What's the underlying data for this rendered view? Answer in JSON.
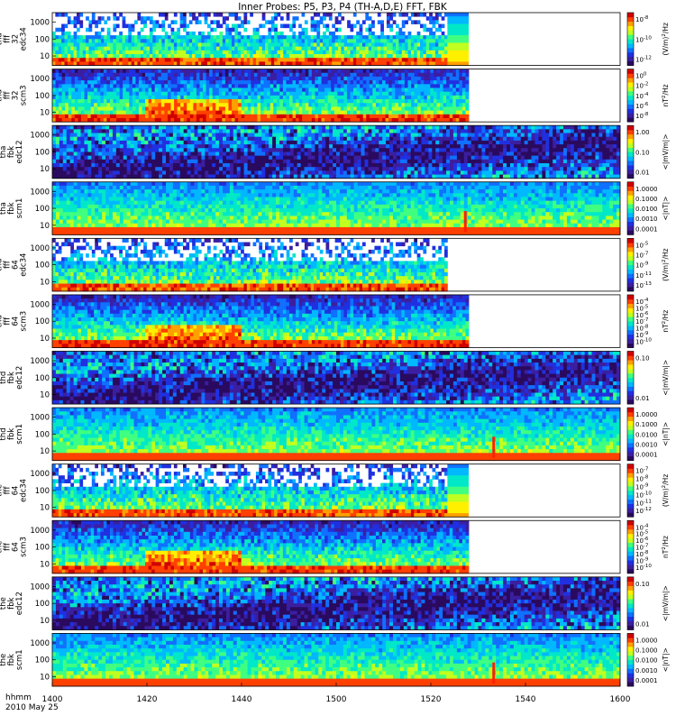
{
  "chart_data": {
    "type": "heatmap",
    "title": "Inner Probes: P5, P3, P4 (TH-A,D,E) FFT, FBK",
    "x_axis": {
      "label_line1": "hhmm",
      "label_line2": "2010 May 25",
      "ticks": [
        "1400",
        "1420",
        "1440",
        "1500",
        "1520",
        "1540",
        "1600"
      ],
      "range_minutes": [
        0,
        120
      ]
    },
    "panels": [
      {
        "ylabel": [
          "tha",
          "fff",
          "32",
          "edc34"
        ],
        "yticks": [
          "1000",
          "100",
          "10"
        ],
        "cbar_ticks": [
          "10^-8",
          "10^-10",
          "10^-12"
        ],
        "cbar_label": "(V/m)^2/Hz",
        "kind": "fff-e",
        "data_end_minutes": 83.5,
        "tail_end_minutes": 88
      },
      {
        "ylabel": [
          "tha",
          "fff",
          "32",
          "scm3"
        ],
        "yticks": [
          "1000",
          "100",
          "10"
        ],
        "cbar_ticks": [
          "10^0",
          "10^-2",
          "10^-4",
          "10^-6",
          "10^-8"
        ],
        "cbar_label": "nT^2/Hz",
        "kind": "fff-b",
        "data_end_minutes": 88
      },
      {
        "ylabel": [
          "tha",
          "fbk",
          "edc12"
        ],
        "yticks": [
          "1000",
          "100",
          "10"
        ],
        "cbar_ticks": [
          "1.00",
          "0.10",
          "0.01"
        ],
        "cbar_label": "<|mV/m|>",
        "kind": "fbk-e",
        "data_end_minutes": 120
      },
      {
        "ylabel": [
          "tha",
          "fbk",
          "scm1"
        ],
        "yticks": [
          "1000",
          "100",
          "10"
        ],
        "cbar_ticks": [
          "1.0000",
          "0.1000",
          "0.0100",
          "0.0010",
          "0.0001"
        ],
        "cbar_label": "<|nT|>",
        "kind": "fbk-b",
        "data_end_minutes": 120,
        "spike_minutes": 87
      },
      {
        "ylabel": [
          "thd",
          "fff",
          "64",
          "edc34"
        ],
        "yticks": [
          "1000",
          "100",
          "10"
        ],
        "cbar_ticks": [
          "10^-5",
          "10^-7",
          "10^-9",
          "10^-11",
          "10^-13"
        ],
        "cbar_label": "(V/m)^2/Hz",
        "kind": "fff-e",
        "data_end_minutes": 83.5
      },
      {
        "ylabel": [
          "thd",
          "fff",
          "64",
          "scm3"
        ],
        "yticks": [
          "1000",
          "100",
          "10"
        ],
        "cbar_ticks": [
          "10^-4",
          "10^-5",
          "10^-6",
          "10^-7",
          "10^-8",
          "10^-9",
          "10^-10"
        ],
        "cbar_label": "nT^2/Hz",
        "kind": "fff-b",
        "data_end_minutes": 88
      },
      {
        "ylabel": [
          "thd",
          "fbk",
          "edc12"
        ],
        "yticks": [
          "1000",
          "100",
          "10"
        ],
        "cbar_ticks": [
          "0.10",
          "0.01"
        ],
        "cbar_label": "<|mV/m|>",
        "kind": "fbk-e",
        "data_end_minutes": 120
      },
      {
        "ylabel": [
          "thd",
          "fbk",
          "scm1"
        ],
        "yticks": [
          "1000",
          "100",
          "10"
        ],
        "cbar_ticks": [
          "1.0000",
          "0.1000",
          "0.0100",
          "0.0010",
          "0.0001"
        ],
        "cbar_label": "<|nT|>",
        "kind": "fbk-b",
        "data_end_minutes": 120,
        "spike_minutes": 93
      },
      {
        "ylabel": [
          "the",
          "fff",
          "64",
          "edc34"
        ],
        "yticks": [
          "1000",
          "100",
          "10"
        ],
        "cbar_ticks": [
          "10^-7",
          "10^-8",
          "10^-9",
          "10^-10",
          "10^-11",
          "10^-12"
        ],
        "cbar_label": "(V/m)^2/Hz",
        "kind": "fff-e",
        "data_end_minutes": 83.5,
        "tail_end_minutes": 88
      },
      {
        "ylabel": [
          "the",
          "fff",
          "64",
          "scm3"
        ],
        "yticks": [
          "1000",
          "100",
          "10"
        ],
        "cbar_ticks": [
          "10^-4",
          "10^-5",
          "10^-6",
          "10^-7",
          "10^-8",
          "10^-9",
          "10^-10"
        ],
        "cbar_label": "nT^2/Hz",
        "kind": "fff-b",
        "data_end_minutes": 88
      },
      {
        "ylabel": [
          "the",
          "fbk",
          "edc12"
        ],
        "yticks": [
          "1000",
          "100",
          "10"
        ],
        "cbar_ticks": [
          "0.10",
          "0.01"
        ],
        "cbar_label": "<|mV/m|>",
        "kind": "fbk-e",
        "data_end_minutes": 120
      },
      {
        "ylabel": [
          "the",
          "fbk",
          "scm1"
        ],
        "yticks": [
          "1000",
          "100",
          "10"
        ],
        "cbar_ticks": [
          "1.0000",
          "0.1000",
          "0.0100",
          "0.0010",
          "0.0001"
        ],
        "cbar_label": "<|nT|>",
        "kind": "fbk-b",
        "data_end_minutes": 120,
        "spike_minutes": 93
      }
    ],
    "colormap": [
      "#2a0a5e",
      "#3b1fa0",
      "#2030e0",
      "#1070ff",
      "#00b8ff",
      "#00e8c8",
      "#40ff80",
      "#c0ff20",
      "#fff000",
      "#ffa000",
      "#ff4000",
      "#d00000"
    ],
    "grid": false,
    "legend": "colorbars-right"
  }
}
